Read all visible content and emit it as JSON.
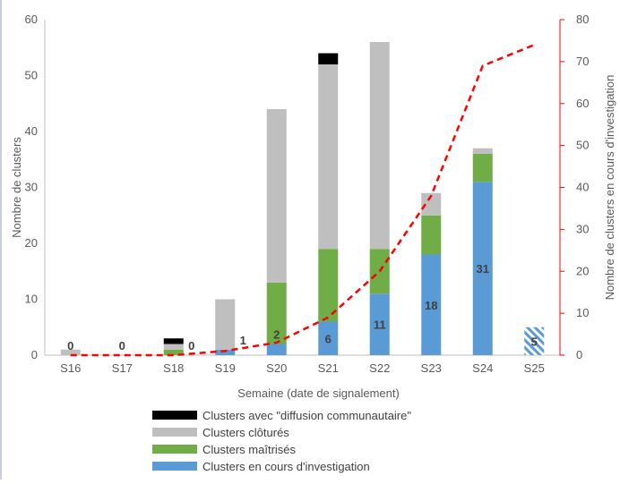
{
  "chart_data": {
    "type": "bar",
    "stacked": true,
    "categories": [
      "S16",
      "S17",
      "S18",
      "S19",
      "S20",
      "S21",
      "S22",
      "S23",
      "S24",
      "S25"
    ],
    "series": [
      {
        "name": "Clusters en cours d'investigation",
        "color": "#5b9bd5",
        "values": [
          0,
          0,
          0,
          1,
          2,
          6,
          11,
          18,
          31,
          5
        ],
        "hatched_category": "S25"
      },
      {
        "name": "Clusters maîtrisés",
        "color": "#70ad47",
        "values": [
          0,
          0,
          1,
          0,
          11,
          13,
          8,
          7,
          5,
          0
        ]
      },
      {
        "name": "Clusters clôturés",
        "color": "#bfbfbf",
        "values": [
          1,
          0,
          1,
          9,
          31,
          33,
          37,
          4,
          1,
          0
        ]
      },
      {
        "name": "Clusters avec \"diffusion communautaire\"",
        "color": "#000000",
        "values": [
          0,
          0,
          1,
          0,
          0,
          2,
          0,
          0,
          0,
          0
        ]
      }
    ],
    "line": {
      "color": "#ff0000",
      "style": "dashed",
      "axis": "right",
      "values": [
        0,
        0,
        0,
        1,
        3,
        9,
        20,
        38,
        69,
        74
      ]
    },
    "data_labels": [
      {
        "category": "S16",
        "text": "0"
      },
      {
        "category": "S17",
        "text": "0"
      },
      {
        "category": "S18",
        "text": "0"
      },
      {
        "category": "S19",
        "text": "1"
      },
      {
        "category": "S20",
        "text": "2"
      },
      {
        "category": "S21",
        "text": "6"
      },
      {
        "category": "S22",
        "text": "11"
      },
      {
        "category": "S23",
        "text": "18"
      },
      {
        "category": "S24",
        "text": "31"
      },
      {
        "category": "S25",
        "text": "5"
      }
    ],
    "xlabel": "Semaine (date de signalement)",
    "ylabel": "Nombre de clusters",
    "y2label": "Nombre de clusters en cours d'investigation",
    "ylim": [
      0,
      60
    ],
    "yticks": [
      "0",
      "10",
      "20",
      "30",
      "40",
      "50",
      "60"
    ],
    "y2lim": [
      0,
      80
    ],
    "y2ticks": [
      "0",
      "10",
      "20",
      "30",
      "40",
      "50",
      "60",
      "70",
      "80"
    ],
    "legend_position": "bottom",
    "legend": [
      "Clusters avec \"diffusion communautaire\"",
      "Clusters clôturés",
      "Clusters maîtrisés",
      "Clusters en cours d'investigation"
    ],
    "grid": false
  }
}
